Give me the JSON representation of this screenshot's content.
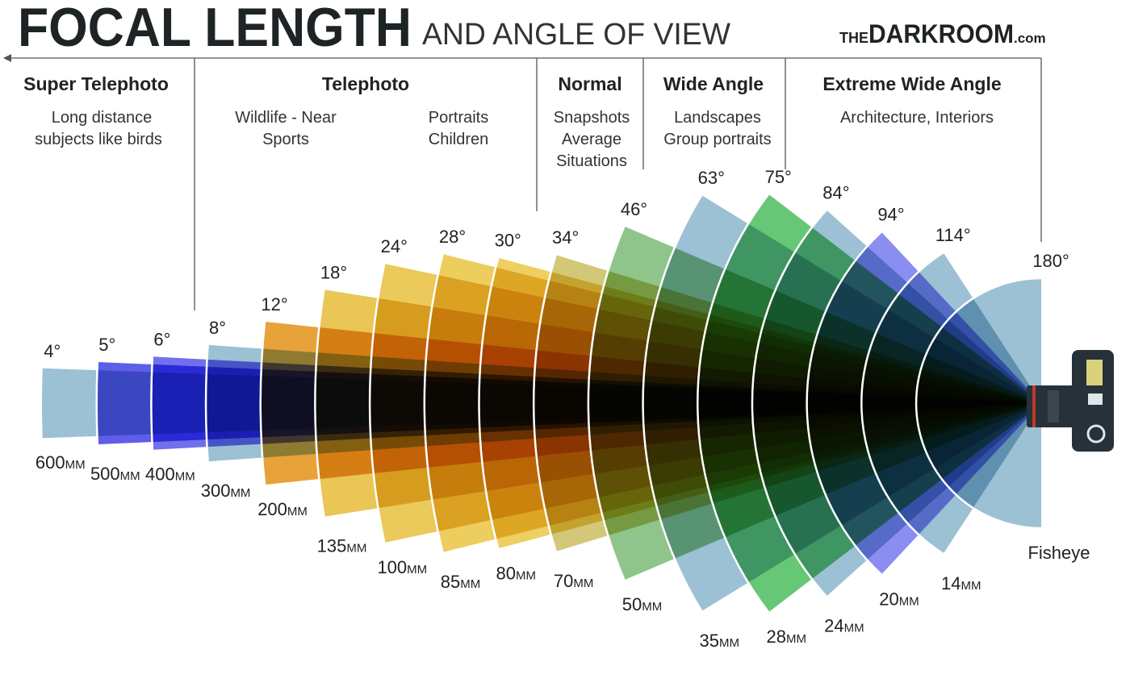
{
  "header": {
    "title": "FOCAL LENGTH",
    "subtitle": "AND ANGLE OF VIEW",
    "logo": {
      "prefix": "THE",
      "name": "DARKROOM",
      "suffix": ".com"
    }
  },
  "categories": [
    {
      "name": "Super Telephoto",
      "notes": [
        [
          "Long distance",
          "subjects like birds"
        ]
      ]
    },
    {
      "name": "Telephoto",
      "notes": [
        [
          "Wildlife - Near",
          "Sports"
        ],
        [
          "Portraits",
          "Children"
        ]
      ]
    },
    {
      "name": "Normal",
      "notes": [
        [
          "Snapshots",
          "Average",
          "Situations"
        ]
      ]
    },
    {
      "name": "Wide Angle",
      "notes": [
        [
          "Landscapes",
          "Group portraits"
        ]
      ]
    },
    {
      "name": "Extreme Wide Angle",
      "notes": [
        [
          "Architecture, Interiors"
        ]
      ]
    }
  ],
  "lenses": [
    {
      "angle": 4,
      "angle_label": "4°",
      "focal": "600",
      "unit": "MM",
      "color": "#9cc0d4"
    },
    {
      "angle": 5,
      "angle_label": "5°",
      "focal": "500",
      "unit": "MM",
      "color": "#5e5ee9"
    },
    {
      "angle": 6,
      "angle_label": "6°",
      "focal": "400",
      "unit": "MM",
      "color": "#7070ec"
    },
    {
      "angle": 8,
      "angle_label": "8°",
      "focal": "300",
      "unit": "MM",
      "color": "#9cc0d4"
    },
    {
      "angle": 12,
      "angle_label": "12°",
      "focal": "200",
      "unit": "MM",
      "color": "#e8a23a"
    },
    {
      "angle": 18,
      "angle_label": "18°",
      "focal": "135",
      "unit": "MM",
      "color": "#e9c655"
    },
    {
      "angle": 24,
      "angle_label": "24°",
      "focal": "100",
      "unit": "MM",
      "color": "#ebc95a"
    },
    {
      "angle": 28,
      "angle_label": "28°",
      "focal": "85",
      "unit": "MM",
      "color": "#edcd5e"
    },
    {
      "angle": 30,
      "angle_label": "30°",
      "focal": "80",
      "unit": "MM",
      "color": "#eecf62"
    },
    {
      "angle": 34,
      "angle_label": "34°",
      "focal": "70",
      "unit": "MM",
      "color": "#d2c878"
    },
    {
      "angle": 46,
      "angle_label": "46°",
      "focal": "50",
      "unit": "MM",
      "color": "#8fc58a"
    },
    {
      "angle": 63,
      "angle_label": "63°",
      "focal": "35",
      "unit": "MM",
      "color": "#9cc0d4"
    },
    {
      "angle": 75,
      "angle_label": "75°",
      "focal": "28",
      "unit": "MM",
      "color": "#66c777"
    },
    {
      "angle": 84,
      "angle_label": "84°",
      "focal": "24",
      "unit": "MM",
      "color": "#9cc0d4"
    },
    {
      "angle": 94,
      "angle_label": "94°",
      "focal": "20",
      "unit": "MM",
      "color": "#8a8ef0"
    },
    {
      "angle": 114,
      "angle_label": "114°",
      "focal": "14",
      "unit": "MM",
      "color": "#9cc0d4"
    },
    {
      "angle": 180,
      "angle_label": "180°",
      "focal": "Fisheye",
      "color": "#9cc0d4"
    }
  ]
}
